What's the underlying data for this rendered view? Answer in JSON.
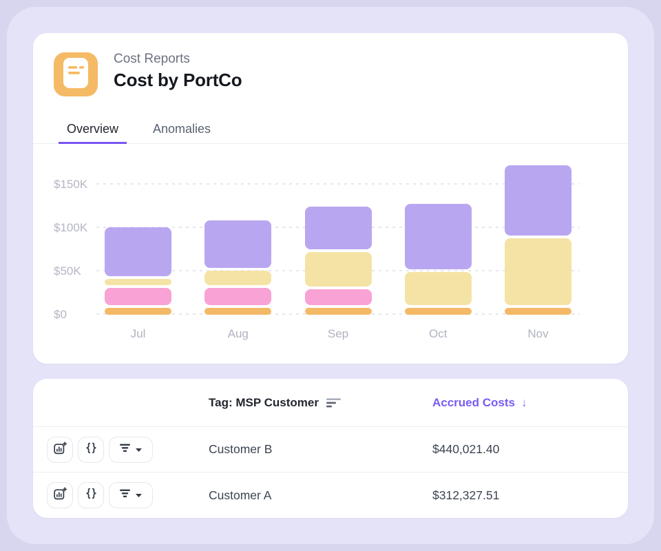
{
  "header": {
    "app_label": "Cost Reports",
    "title": "Cost by PortCo"
  },
  "tabs": [
    {
      "label": "Overview",
      "active": true
    },
    {
      "label": "Anomalies",
      "active": false
    }
  ],
  "chart_data": {
    "type": "bar",
    "stacked": true,
    "title": "",
    "categories": [
      "Jul",
      "Aug",
      "Sep",
      "Oct",
      "Nov"
    ],
    "series": [
      {
        "name": "orange",
        "color": "#f4b966",
        "values": [
          8,
          8,
          8,
          8,
          8
        ]
      },
      {
        "name": "pink",
        "color": "#f8a2d5",
        "values": [
          20,
          20,
          18,
          0,
          0
        ]
      },
      {
        "name": "yellow",
        "color": "#f4e3a4",
        "values": [
          7,
          17,
          40,
          38,
          77
        ]
      },
      {
        "name": "purple",
        "color": "#b9a6f0",
        "values": [
          56,
          55,
          49,
          75,
          81
        ]
      }
    ],
    "unit": "thousand USD",
    "y_ticks": [
      "$0",
      "$50K",
      "$100K",
      "$150K"
    ],
    "y_tick_values": [
      0,
      50,
      100,
      150
    ],
    "ylim": [
      0,
      175
    ],
    "xlabel": "",
    "ylabel": "",
    "grid": "dotted horizontal",
    "legend": "none"
  },
  "table": {
    "tag_header": "Tag: MSP Customer",
    "costs_header": "Accrued Costs",
    "sort_arrow": "↓",
    "rows": [
      {
        "name": "Customer B",
        "cost": "$440,021.40"
      },
      {
        "name": "Customer A",
        "cost": "$312,327.51"
      }
    ]
  },
  "colors": {
    "accent_purple": "#7a5af5",
    "doc_icon_bg": "#f5ba66",
    "page_background": "#e5e3f8"
  }
}
